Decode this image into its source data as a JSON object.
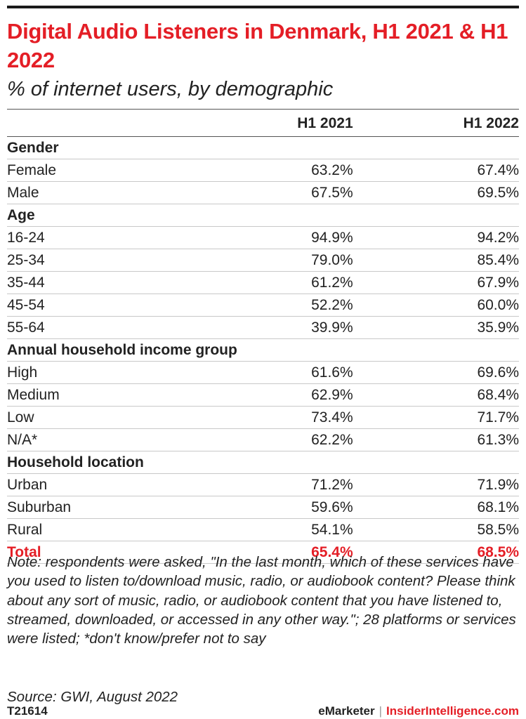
{
  "title": "Digital Audio Listeners in Denmark, H1 2021 & H1 2022",
  "subtitle": "% of internet users, by demographic",
  "chart_data": {
    "type": "table",
    "columns": [
      "",
      "H1 2021",
      "H1 2022"
    ],
    "rows": [
      {
        "kind": "section",
        "label": "Gender"
      },
      {
        "kind": "data",
        "label": "Female",
        "values": [
          "63.2%",
          "67.4%"
        ]
      },
      {
        "kind": "data",
        "label": "Male",
        "values": [
          "67.5%",
          "69.5%"
        ]
      },
      {
        "kind": "section",
        "label": "Age"
      },
      {
        "kind": "data",
        "label": "16-24",
        "values": [
          "94.9%",
          "94.2%"
        ]
      },
      {
        "kind": "data",
        "label": "25-34",
        "values": [
          "79.0%",
          "85.4%"
        ]
      },
      {
        "kind": "data",
        "label": "35-44",
        "values": [
          "61.2%",
          "67.9%"
        ]
      },
      {
        "kind": "data",
        "label": "45-54",
        "values": [
          "52.2%",
          "60.0%"
        ]
      },
      {
        "kind": "data",
        "label": "55-64",
        "values": [
          "39.9%",
          "35.9%"
        ]
      },
      {
        "kind": "section",
        "label": "Annual household income group"
      },
      {
        "kind": "data",
        "label": "High",
        "values": [
          "61.6%",
          "69.6%"
        ]
      },
      {
        "kind": "data",
        "label": "Medium",
        "values": [
          "62.9%",
          "68.4%"
        ]
      },
      {
        "kind": "data",
        "label": "Low",
        "values": [
          "73.4%",
          "71.7%"
        ]
      },
      {
        "kind": "data",
        "label": "N/A*",
        "values": [
          "62.2%",
          "61.3%"
        ]
      },
      {
        "kind": "section",
        "label": "Household location"
      },
      {
        "kind": "data",
        "label": "Urban",
        "values": [
          "71.2%",
          "71.9%"
        ]
      },
      {
        "kind": "data",
        "label": "Suburban",
        "values": [
          "59.6%",
          "68.1%"
        ]
      },
      {
        "kind": "data",
        "label": "Rural",
        "values": [
          "54.1%",
          "58.5%"
        ]
      },
      {
        "kind": "total",
        "label": "Total",
        "values": [
          "65.4%",
          "68.5%"
        ]
      }
    ]
  },
  "note": "Note: respondents were asked, \"In the last month, which of these services have you used to listen to/download music, radio, or audiobook content? Please think about any sort of music, radio, or audiobook content that you have listened to, streamed, downloaded, or accessed in any other way.\"; 28 platforms or services were listed; *don't know/prefer not to say",
  "source": "Source: GWI, August 2022",
  "footer": {
    "chart_id": "T21614",
    "brand_1": "eMarketer",
    "separator": "|",
    "brand_2": "InsiderIntelligence.com"
  },
  "colors": {
    "accent": "#e41e26",
    "text": "#222222",
    "rule": "#c8c8c8"
  }
}
